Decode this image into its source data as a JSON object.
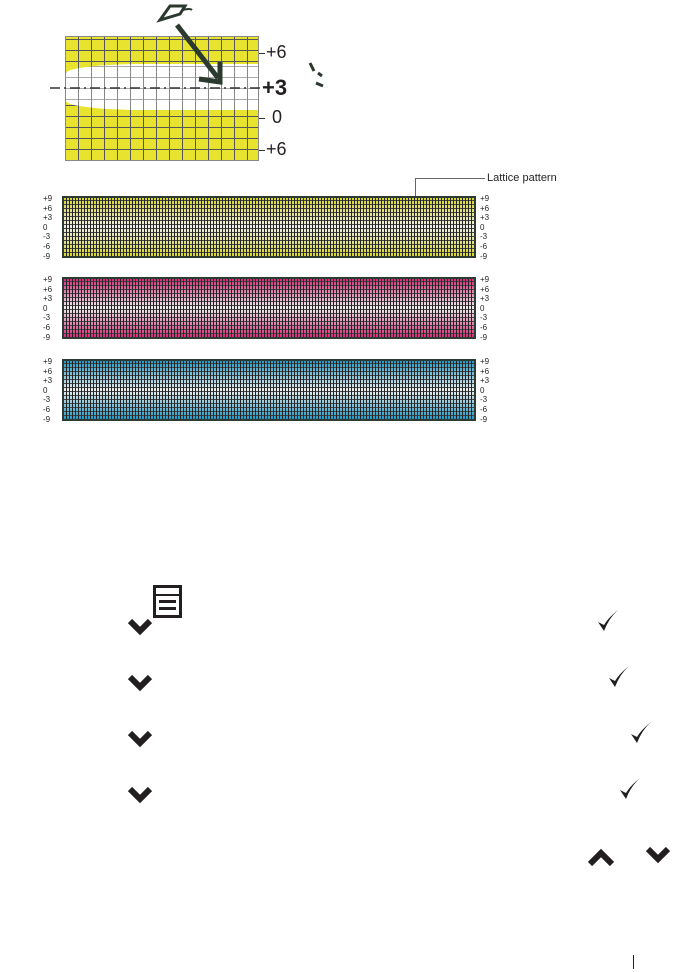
{
  "diagram": {
    "scale_labels": [
      "+6",
      "+3",
      "0",
      "+6"
    ],
    "highlight": "+3"
  },
  "lattice": {
    "callout": "Lattice pattern",
    "scale": [
      "+9",
      "+6",
      "+3",
      "0",
      "-3",
      "-6",
      "-9"
    ],
    "bars": [
      {
        "name": "yellow",
        "color": "#d6d62a"
      },
      {
        "name": "magenta",
        "color": "#d4297a"
      },
      {
        "name": "cyan",
        "color": "#1b9cc9"
      }
    ]
  },
  "icons": [
    "menu-icon",
    "chevron-down-icon",
    "check-icon",
    "chevron-up-icon"
  ]
}
